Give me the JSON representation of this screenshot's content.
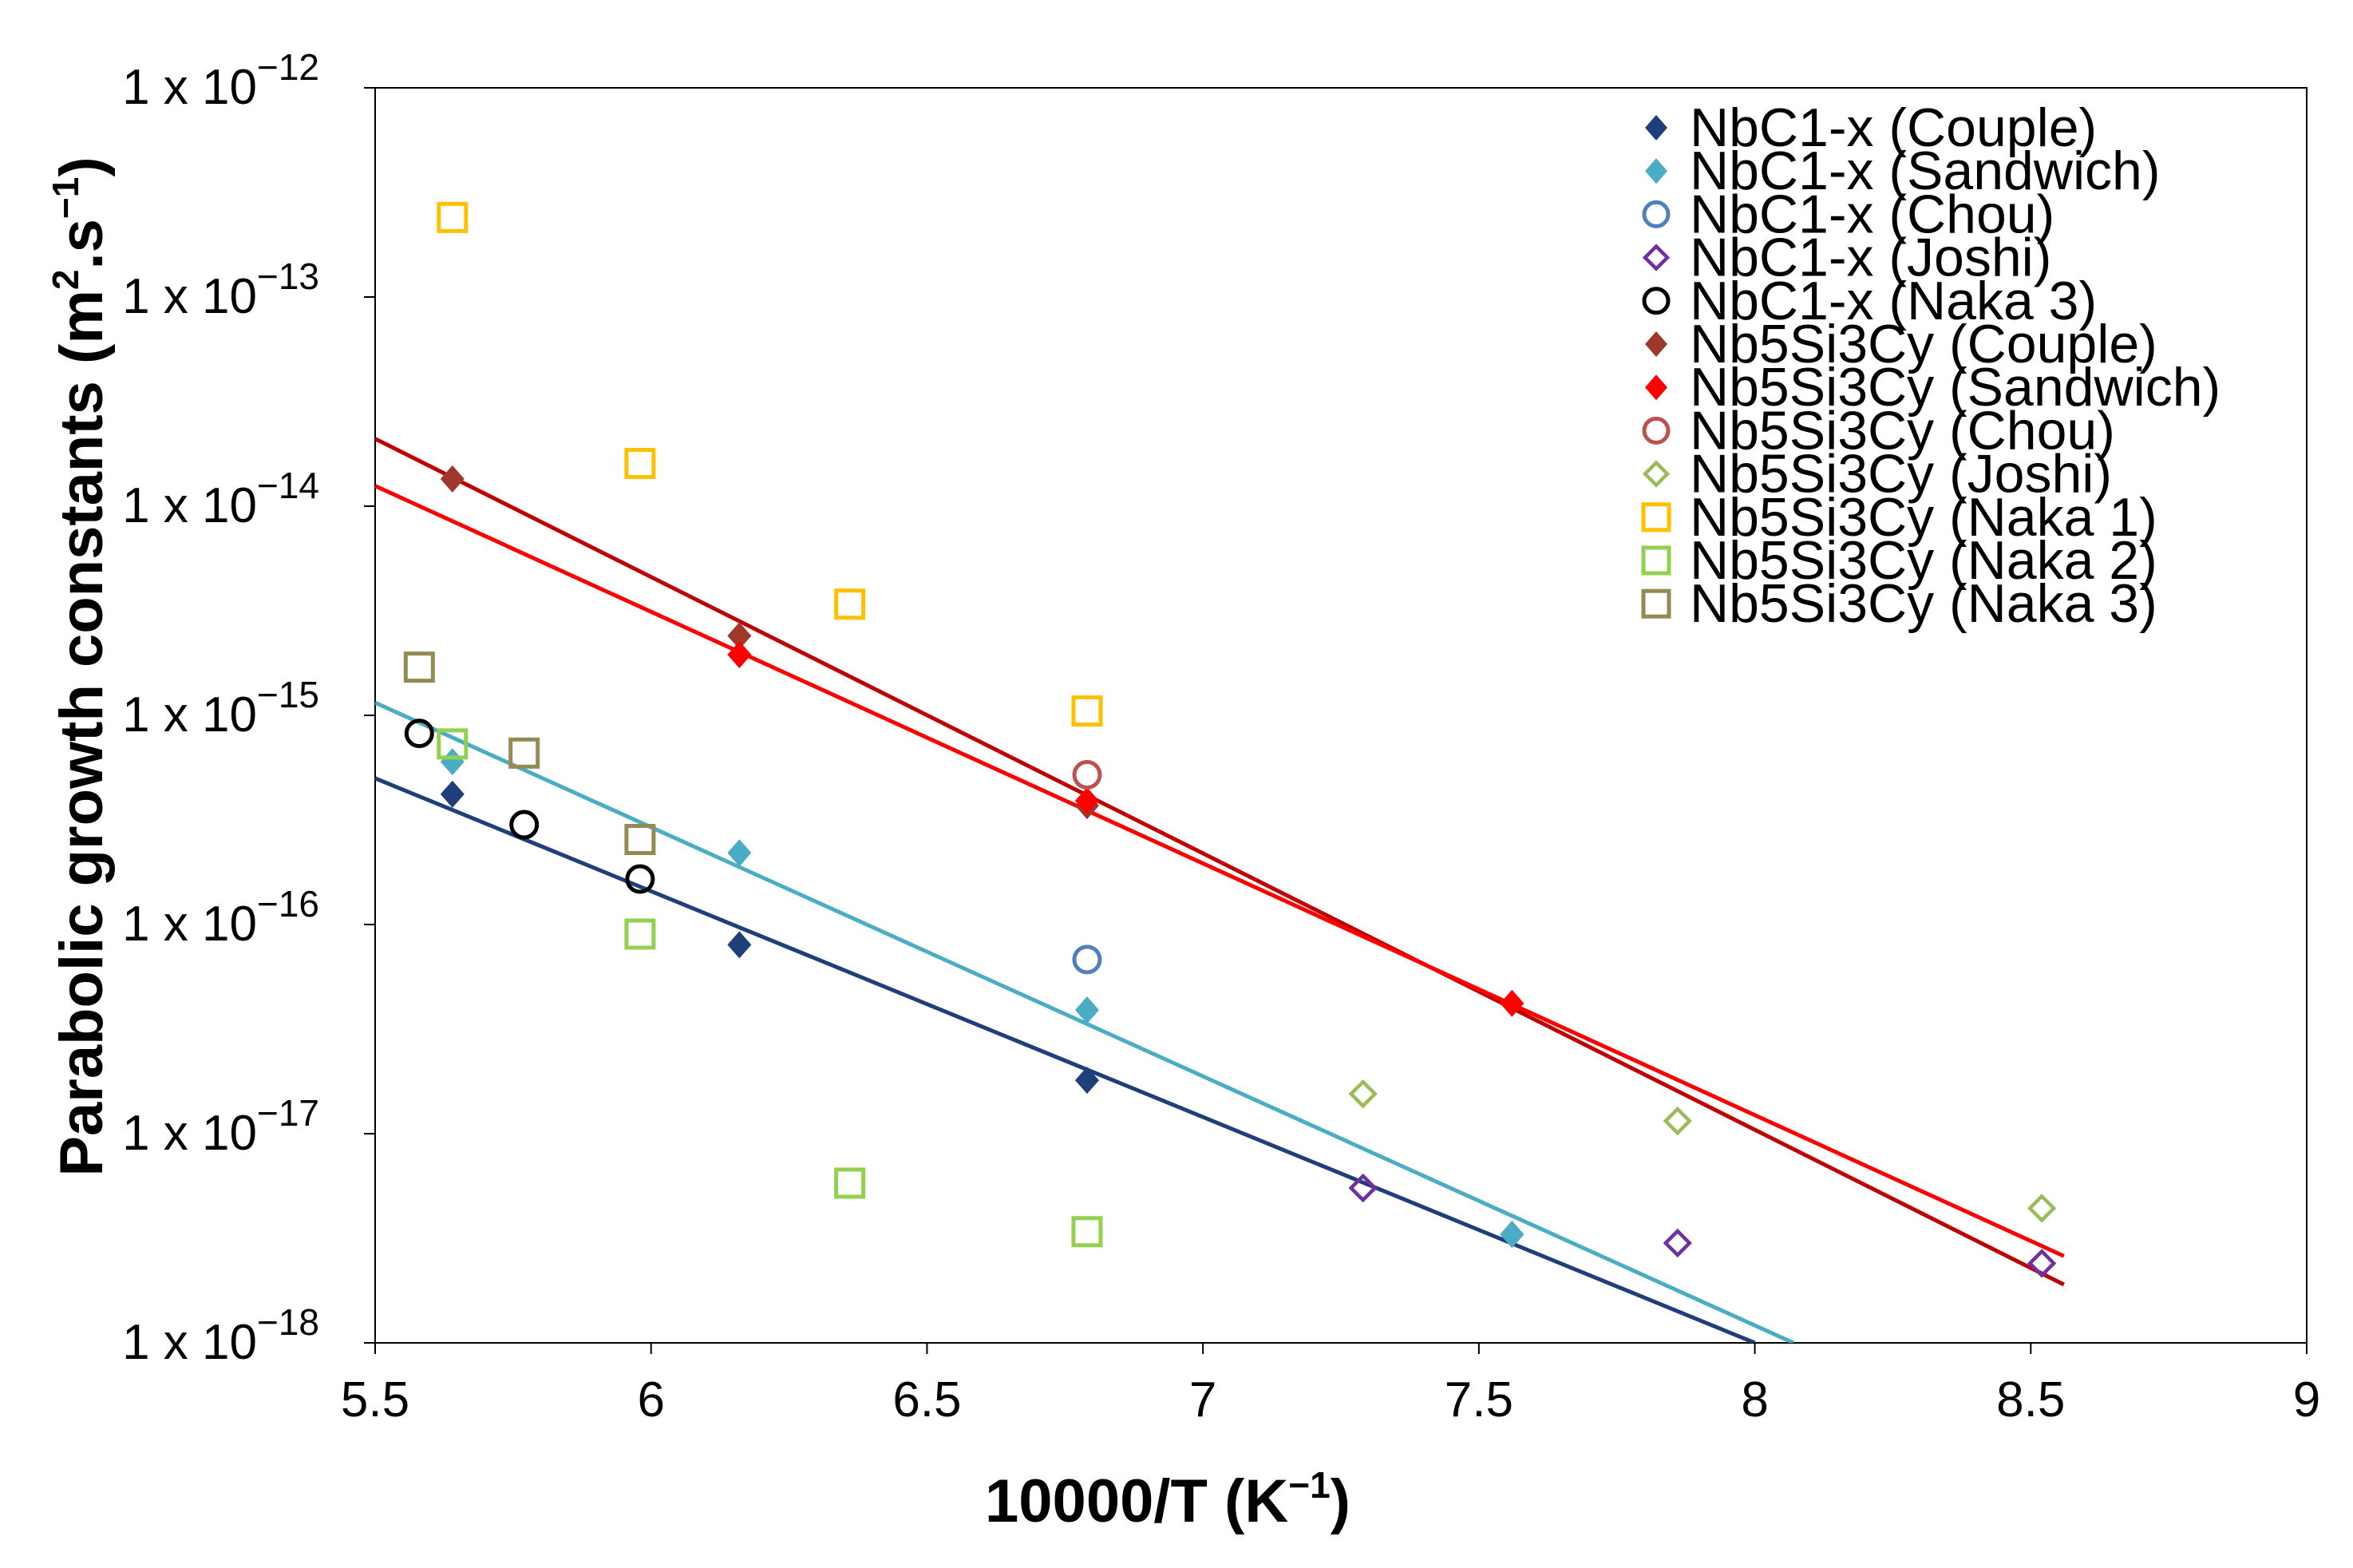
{
  "chart_data": {
    "type": "scatter",
    "title": "",
    "xlabel": "10000/T (K",
    "xlabel_sup": "−1",
    "xlabel_close": ")",
    "ylabel": "Parabolic growth constants (m",
    "ylabel_sup1": "2",
    "ylabel_mid": ".s",
    "ylabel_sup2": "−1",
    "ylabel_close": ")",
    "xlim": [
      5.5,
      9
    ],
    "ylim_log10": [
      -18,
      -12
    ],
    "x_ticks": [
      {
        "value": 5.5,
        "label": "5.5"
      },
      {
        "value": 6,
        "label": "6"
      },
      {
        "value": 6.5,
        "label": "6.5"
      },
      {
        "value": 7,
        "label": "7"
      },
      {
        "value": 7.5,
        "label": "7.5"
      },
      {
        "value": 8,
        "label": "8"
      },
      {
        "value": 8.5,
        "label": "8.5"
      },
      {
        "value": 9,
        "label": "9"
      }
    ],
    "y_ticks": [
      {
        "exp": -12,
        "base": "1 x 10",
        "sup": "−12"
      },
      {
        "exp": -13,
        "base": "1 x 10",
        "sup": "−13"
      },
      {
        "exp": -14,
        "base": "1 x 10",
        "sup": "−14"
      },
      {
        "exp": -15,
        "base": "1 x 10",
        "sup": "−15"
      },
      {
        "exp": -16,
        "base": "1 x 10",
        "sup": "−16"
      },
      {
        "exp": -17,
        "base": "1 x 10",
        "sup": "−17"
      },
      {
        "exp": -18,
        "base": "1 x 10",
        "sup": "−18"
      }
    ],
    "legend_position": "top-right",
    "series": [
      {
        "name": "NbC1-x (Couple)",
        "marker": "diamond-filled",
        "color": "#1f3f7a",
        "points": [
          [
            5.64,
            4.2e-16
          ],
          [
            6.16,
            8e-17
          ],
          [
            6.79,
            1.8e-17
          ],
          [
            7.56,
            3.3e-18
          ]
        ]
      },
      {
        "name": "NbC1-x (Sandwich)",
        "marker": "diamond-filled",
        "color": "#4aacc5",
        "points": [
          [
            5.64,
            6e-16
          ],
          [
            6.16,
            2.2e-16
          ],
          [
            6.79,
            3.9e-17
          ],
          [
            7.56,
            3.3e-18
          ]
        ]
      },
      {
        "name": "NbC1-x (Chou)",
        "marker": "circle-open",
        "color": "#4e80bd",
        "points": [
          [
            6.79,
            6.8e-17
          ]
        ]
      },
      {
        "name": "NbC1-x (Joshi)",
        "marker": "diamond-open",
        "color": "#7030a0",
        "points": [
          [
            7.29,
            5.5e-18
          ],
          [
            7.86,
            3e-18
          ],
          [
            8.52,
            2.4e-18
          ]
        ]
      },
      {
        "name": "NbC1-x (Naka 3)",
        "marker": "circle-open",
        "color": "#000000",
        "points": [
          [
            5.58,
            8.2e-16
          ],
          [
            5.77,
            3e-16
          ],
          [
            5.98,
            1.65e-16
          ]
        ]
      },
      {
        "name": "Nb5Si3Cy (Couple)",
        "marker": "diamond-filled",
        "color": "#a0372d",
        "points": [
          [
            5.64,
            1.35e-14
          ],
          [
            6.16,
            2.4e-15
          ],
          [
            6.79,
            3.7e-16
          ]
        ]
      },
      {
        "name": "Nb5Si3Cy (Sandwich)",
        "marker": "diamond-filled",
        "color": "#ff0000",
        "points": [
          [
            6.16,
            1.95e-15
          ],
          [
            6.79,
            3.9e-16
          ],
          [
            7.56,
            4.2e-17
          ]
        ]
      },
      {
        "name": "Nb5Si3Cy (Chou)",
        "marker": "circle-open",
        "color": "#c0504d",
        "points": [
          [
            6.79,
            5.2e-16
          ]
        ]
      },
      {
        "name": "Nb5Si3Cy (Joshi)",
        "marker": "diamond-open",
        "color": "#9bbb59",
        "points": [
          [
            7.29,
            1.55e-17
          ],
          [
            7.86,
            1.15e-17
          ],
          [
            8.52,
            4.4e-18
          ]
        ]
      },
      {
        "name": "Nb5Si3Cy (Naka 1)",
        "marker": "square-open",
        "color": "#ffc000",
        "points": [
          [
            5.64,
            2.4e-13
          ],
          [
            5.98,
            1.6e-14
          ],
          [
            6.36,
            3.4e-15
          ],
          [
            6.79,
            1.05e-15
          ]
        ]
      },
      {
        "name": "Nb5Si3Cy (Naka 2)",
        "marker": "square-open",
        "color": "#92d050",
        "points": [
          [
            5.64,
            7.3e-16
          ],
          [
            5.98,
            9e-17
          ],
          [
            6.36,
            5.8e-18
          ],
          [
            6.79,
            3.4e-18
          ]
        ]
      },
      {
        "name": "Nb5Si3Cy (Naka 3)",
        "marker": "square-open",
        "color": "#948a54",
        "points": [
          [
            5.58,
            1.7e-15
          ],
          [
            5.77,
            6.6e-16
          ],
          [
            5.98,
            2.55e-16
          ]
        ]
      }
    ],
    "fit_lines": [
      {
        "name": "NbC1-x (Couple) fit",
        "color": "#1f3f7a",
        "x": [
          5.5,
          8.0
        ],
        "y": [
          5e-16,
          1e-18
        ]
      },
      {
        "name": "NbC1-x (Sandwich) fit",
        "color": "#4aacc5",
        "x": [
          5.5,
          8.07
        ],
        "y": [
          1.15e-15,
          1e-18
        ]
      },
      {
        "name": "Nb5Si3Cy (Couple) fit",
        "color": "#c00000",
        "x": [
          5.5,
          8.56
        ],
        "y": [
          2.1e-14,
          1.9e-18
        ]
      },
      {
        "name": "Nb5Si3Cy (Sandwich) fit",
        "color": "#ff0000",
        "x": [
          5.5,
          8.56
        ],
        "y": [
          1.25e-14,
          2.6e-18
        ]
      }
    ]
  }
}
